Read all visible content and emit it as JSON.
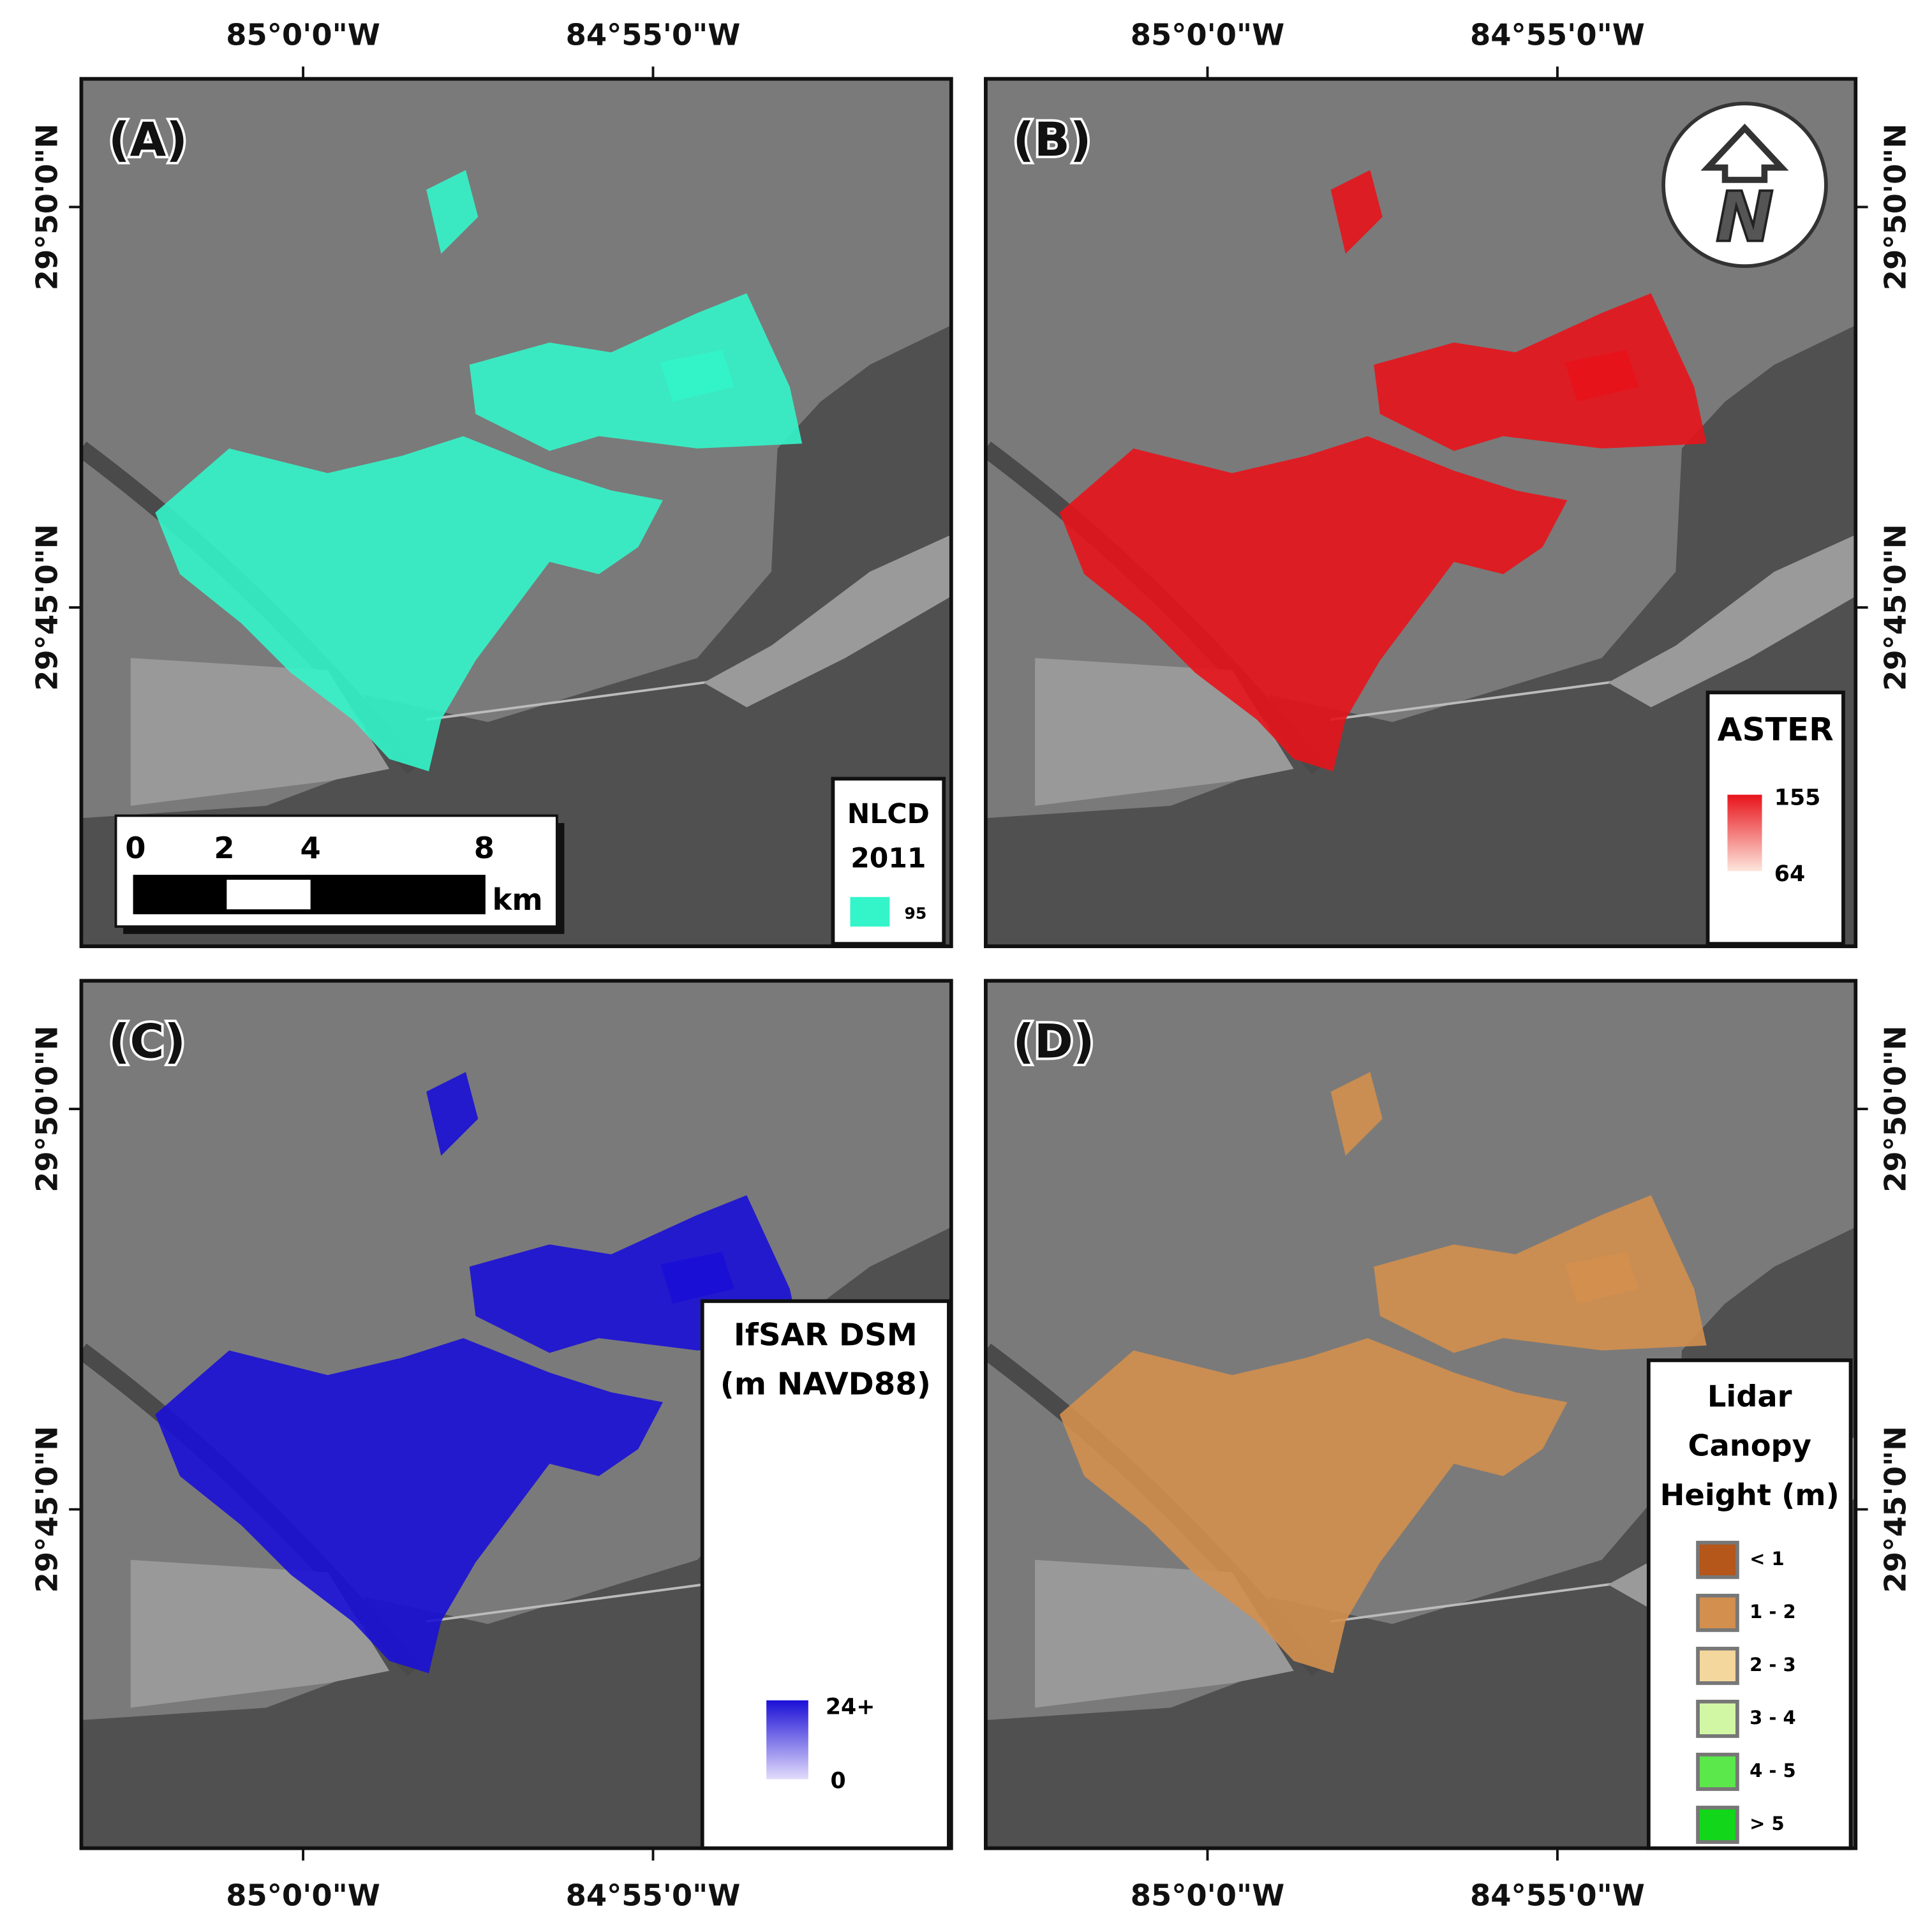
{
  "panels": [
    {
      "label": "(A)",
      "legend": {
        "title_lines": [
          "NLCD",
          "2011"
        ],
        "items": [
          {
            "label": "95",
            "color": "#33f5c9"
          }
        ]
      },
      "scale_bar": {
        "ticks": [
          "0",
          "2",
          "4",
          "8"
        ],
        "unit": "km"
      }
    },
    {
      "label": "(B)",
      "legend": {
        "title_lines": [
          "ASTER"
        ],
        "max": "155",
        "min": "64",
        "color_high": "#e8131b",
        "color_low": "#fde6dc"
      }
    },
    {
      "label": "(C)",
      "legend": {
        "title_lines": [
          "IfSAR DSM",
          "(m NAVD88)"
        ],
        "max": "24+",
        "min": "0",
        "color_high": "#1a0fd6",
        "color_low": "#e2dcfb"
      }
    },
    {
      "label": "(D)",
      "legend": {
        "title_lines": [
          "Lidar",
          "Canopy",
          "Height (m)"
        ],
        "items": [
          {
            "label": "< 1",
            "color": "#b5561a"
          },
          {
            "label": "1 - 2",
            "color": "#d38f4e"
          },
          {
            "label": "2 - 3",
            "color": "#f4d79c"
          },
          {
            "label": "3 - 4",
            "color": "#d2f7a4"
          },
          {
            "label": "4 - 5",
            "color": "#5ae84a"
          },
          {
            "label": "> 5",
            "color": "#12d61a"
          }
        ]
      }
    }
  ],
  "lon_labels": [
    "85°0'0\"W",
    "84°55'0\"W"
  ],
  "lat_labels": [
    "29°50'0\"N",
    "29°45'0\"N"
  ],
  "north_arrow": "N"
}
